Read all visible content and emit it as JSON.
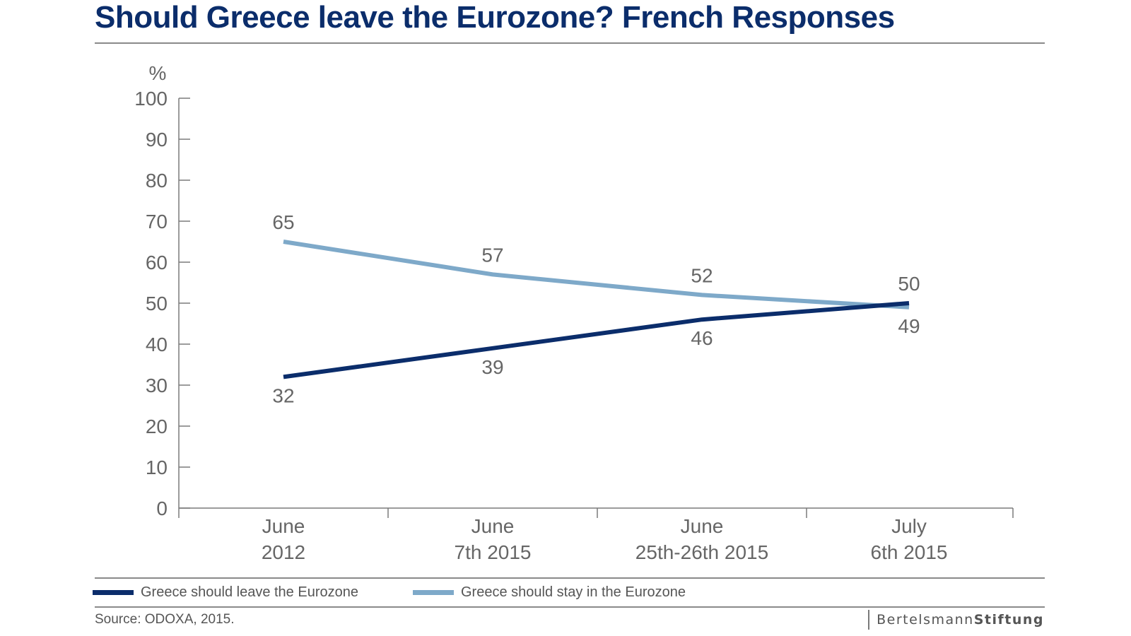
{
  "title": "Should Greece leave the Eurozone? French Responses",
  "source": "Source: ODOXA, 2015.",
  "brand": {
    "part1": "Bertelsmann",
    "part2": "Stiftung"
  },
  "legend": {
    "leave": "Greece should leave the Eurozone",
    "stay": "Greece should stay in the Eurozone"
  },
  "colors": {
    "leave": "#0b2d6b",
    "stay": "#7ea9c9",
    "axis": "#7a7a7a",
    "text": "#666666"
  },
  "chart_data": {
    "type": "line",
    "ylabel": "%",
    "ylim": [
      0,
      100
    ],
    "yticks": [
      0,
      10,
      20,
      30,
      40,
      50,
      60,
      70,
      80,
      90,
      100
    ],
    "grid": false,
    "categories": [
      [
        "June",
        "2012"
      ],
      [
        "June",
        "7th 2015"
      ],
      [
        "June",
        "25th-26th 2015"
      ],
      [
        "July",
        "6th 2015"
      ]
    ],
    "series": [
      {
        "name": "Greece should leave the Eurozone",
        "key": "leave",
        "values": [
          32,
          39,
          46,
          50
        ]
      },
      {
        "name": "Greece should stay in the Eurozone",
        "key": "stay",
        "values": [
          65,
          57,
          52,
          49
        ]
      }
    ],
    "legend_position": "bottom"
  }
}
